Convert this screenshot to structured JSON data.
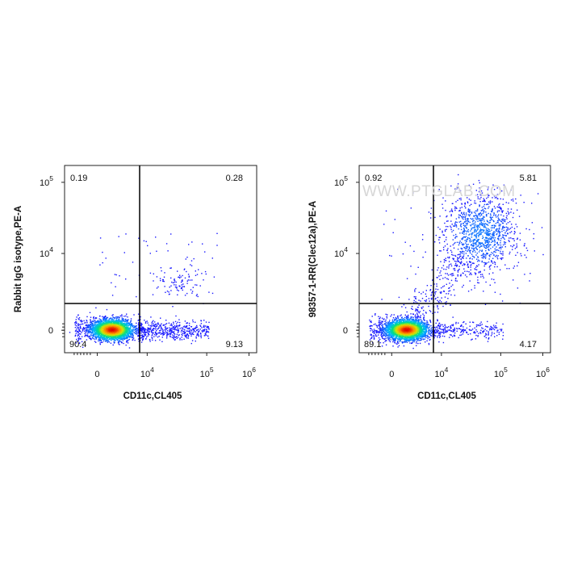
{
  "watermark": "WWW.PTGLAB.COM",
  "chart_data": [
    {
      "type": "scatter",
      "subtype": "flow-cytometry-density-dot-plot",
      "xlabel": "CD11c,CL405",
      "ylabel": "Rabbit IgG isotype,PE-A",
      "xscale": "biexponential",
      "yscale": "biexponential",
      "x_ticks": [
        "0",
        "10^4",
        "10^5",
        "10^6"
      ],
      "y_ticks": [
        "0",
        "10^4",
        "10^5"
      ],
      "quadrant_gates": {
        "x": 7000,
        "y": 2000
      },
      "quadrants": {
        "upper_left": "0.19",
        "upper_right": "0.28",
        "lower_left": "90.4",
        "lower_right": "9.13"
      },
      "colormap": [
        "#1a1aff",
        "#00b4ff",
        "#00e080",
        "#d8e600",
        "#ff8a00",
        "#e00000"
      ]
    },
    {
      "type": "scatter",
      "subtype": "flow-cytometry-density-dot-plot",
      "xlabel": "CD11c,CL405",
      "ylabel": "98357-1-RR(Clec12a),PE-A",
      "xscale": "biexponential",
      "yscale": "biexponential",
      "x_ticks": [
        "0",
        "10^4",
        "10^5",
        "10^6"
      ],
      "y_ticks": [
        "0",
        "10^4",
        "10^5"
      ],
      "quadrant_gates": {
        "x": 7000,
        "y": 2000
      },
      "quadrants": {
        "upper_left": "0.92",
        "upper_right": "5.81",
        "lower_left": "89.1",
        "lower_right": "4.17"
      },
      "colormap": [
        "#1a1aff",
        "#00b4ff",
        "#00e080",
        "#d8e600",
        "#ff8a00",
        "#e00000"
      ]
    }
  ]
}
